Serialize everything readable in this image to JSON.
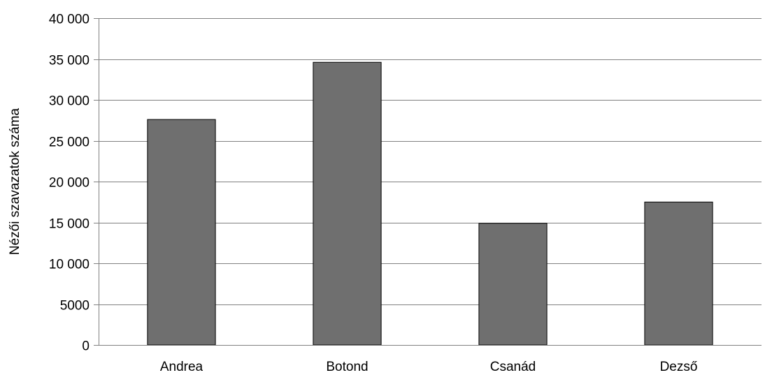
{
  "chart_data": {
    "type": "bar",
    "title": "",
    "xlabel": "",
    "ylabel": "Nézői szavazatok száma",
    "categories": [
      "Andrea",
      "Botond",
      "Csanád",
      "Dezső"
    ],
    "values": [
      27600,
      34600,
      14900,
      17500
    ],
    "ylim": [
      0,
      40000
    ],
    "yticks": [
      0,
      5000,
      10000,
      15000,
      20000,
      25000,
      30000,
      35000,
      40000
    ],
    "ytick_labels": [
      "0",
      "5000",
      "10 000",
      "15 000",
      "20 000",
      "25 000",
      "30 000",
      "35 000",
      "40 000"
    ],
    "grid": true,
    "legend": "none",
    "colors": {
      "bar_fill": "#6f6f6f",
      "bar_stroke": "#000000",
      "gridline": "#808080",
      "axis": "#808080"
    }
  }
}
